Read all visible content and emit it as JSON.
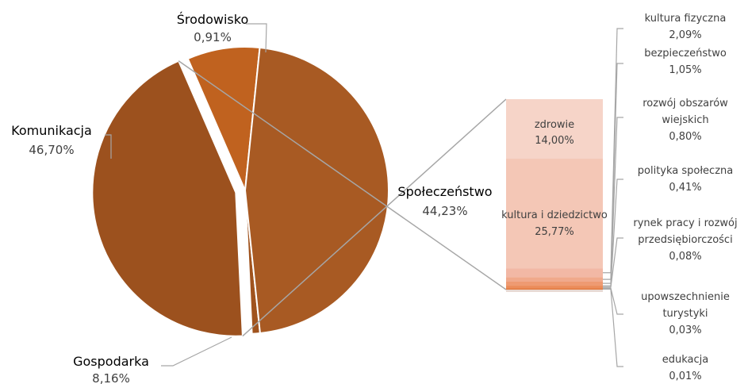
{
  "chart_data": {
    "type": "pie",
    "subtype": "pie-of-bar",
    "slices": [
      {
        "label": "Środowisko",
        "value": 0.91,
        "display": "0,91%",
        "color": "#A0531E"
      },
      {
        "label": "Społeczeństwo",
        "value": 44.23,
        "display": "44,23%",
        "color": "#9C511E",
        "exploded": true
      },
      {
        "label": "Gospodarka",
        "value": 8.16,
        "display": "8,16%",
        "color": "#C0621F"
      },
      {
        "label": "Komunikacja",
        "value": 46.7,
        "display": "46,70%",
        "color": "#A85A23"
      }
    ],
    "breakdown_of": "Społeczeństwo",
    "breakdown": [
      {
        "label": "zdrowie",
        "value": 14.0,
        "display": "14,00%",
        "color": "#F6D4C8"
      },
      {
        "label": "kultura i dziedzictwo",
        "value": 25.77,
        "display": "25,77%",
        "color": "#F4C7B6"
      },
      {
        "label": "kultura fizyczna",
        "value": 2.09,
        "display": "2,09%",
        "color": "#F2B8A5"
      },
      {
        "label": "bezpieczeństwo",
        "value": 1.05,
        "display": "1,05%",
        "color": "#F0A98B"
      },
      {
        "label": "rozwój obszarów wiejskich",
        "value": 0.8,
        "display": "0,80%",
        "color": "#EE9A72"
      },
      {
        "label": "polityka społeczna",
        "value": 0.41,
        "display": "0,41%",
        "color": "#EC8E5E"
      },
      {
        "label": "rynek pracy i rozwój przedsiębiorczości",
        "value": 0.08,
        "display": "0,08%",
        "color": "#E9844F"
      },
      {
        "label": "upowszechnienie turystyki",
        "value": 0.03,
        "display": "0,03%",
        "color": "#E57A42"
      },
      {
        "label": "edukacja",
        "value": 0.01,
        "display": "0,01%",
        "color": "#E27436"
      }
    ]
  }
}
